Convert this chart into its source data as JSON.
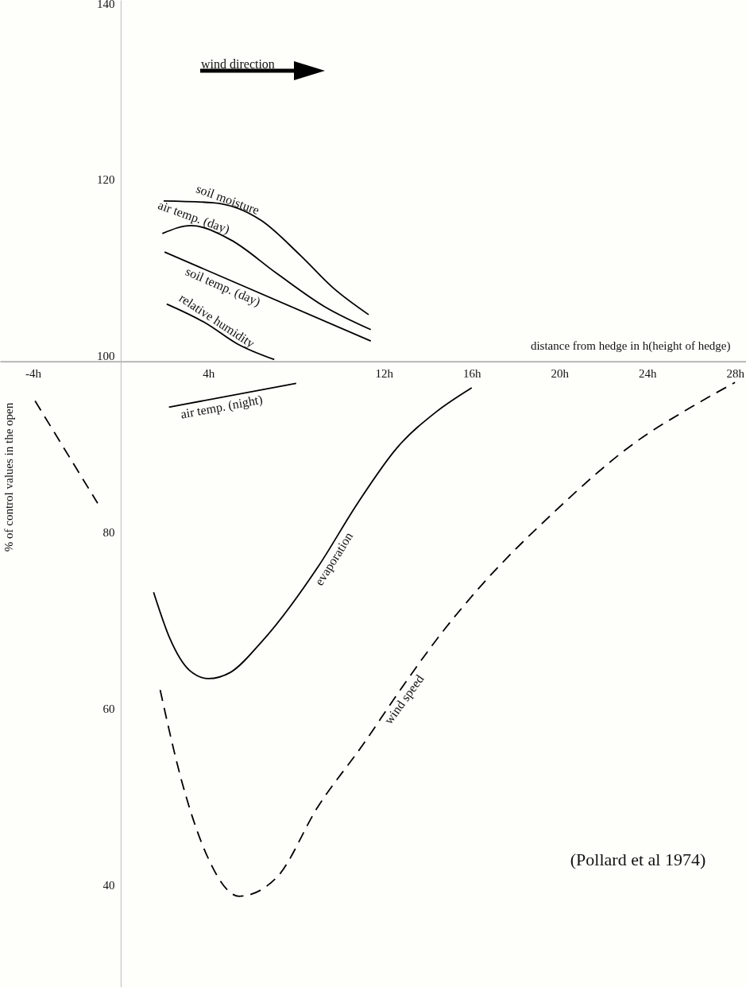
{
  "chart_data": {
    "type": "line",
    "xlabel": "distance from hedge in h(height of hedge)",
    "ylabel": "% of control values in the open",
    "annotations": [
      "wind direction",
      "(Pollard et al 1974)"
    ],
    "xlim": [
      -5.5,
      28.5
    ],
    "ylim": [
      29,
      141
    ],
    "xticks": [
      {
        "value": -4,
        "label": "-4h"
      },
      {
        "value": 4,
        "label": "4h"
      },
      {
        "value": 12,
        "label": "12h"
      },
      {
        "value": 16,
        "label": "16h"
      },
      {
        "value": 20,
        "label": "20h"
      },
      {
        "value": 24,
        "label": "24h"
      },
      {
        "value": 28,
        "label": "28h"
      }
    ],
    "yticks": [
      40,
      60,
      80,
      100,
      120,
      140
    ],
    "grid": false,
    "marker": "none",
    "series": [
      {
        "name": "soil moisture",
        "color": "#000000",
        "line_style": "solid",
        "x": [
          1.96,
          4.2,
          6.4,
          8.2,
          9.7,
          11.3
        ],
        "values": [
          118.2,
          118.0,
          116.0,
          112.0,
          108.3,
          105.3
        ]
      },
      {
        "name": "air temp. (day)",
        "color": "#000000",
        "line_style": "solid",
        "x": [
          1.9,
          3.2,
          5.0,
          7.1,
          9.3,
          11.4
        ],
        "values": [
          114.5,
          115.4,
          113.8,
          110.0,
          106.2,
          103.6
        ]
      },
      {
        "name": "soil temp. (day)",
        "color": "#000000",
        "line_style": "solid",
        "x": [
          2.0,
          11.4
        ],
        "values": [
          112.4,
          102.3
        ]
      },
      {
        "name": "relative humidity",
        "color": "#000000",
        "line_style": "solid",
        "x": [
          2.1,
          3.9,
          5.3,
          7.0
        ],
        "values": [
          106.5,
          104.3,
          102.0,
          100.2
        ]
      },
      {
        "name": "air temp. (night)",
        "color": "#000000",
        "line_style": "solid",
        "x": [
          2.2,
          8.0
        ],
        "values": [
          94.8,
          97.5
        ]
      },
      {
        "name": "evaporation",
        "color": "#000000",
        "line_style": "solid",
        "x": [
          1.5,
          2.25,
          3.15,
          4.0,
          5.0,
          6.4,
          9.0,
          10.8,
          12.6,
          14.4,
          16.0
        ],
        "values": [
          73.8,
          68.5,
          64.9,
          64.0,
          64.7,
          68.1,
          76.7,
          83.9,
          90.2,
          94.3,
          97.0
        ]
      },
      {
        "name": "wind speed",
        "color": "#000000",
        "line_style": "dashed",
        "x": [
          -3.9,
          -1.05,
          0.5,
          1.8,
          2.8,
          3.9,
          5.4,
          7.1,
          9.0,
          11.1,
          12.6,
          14.7,
          16.2,
          19.8,
          23.4,
          26.0,
          28.0
        ],
        "values": [
          95.5,
          83.9,
          null,
          62.7,
          52.2,
          44.1,
          39.3,
          41.4,
          49.5,
          56.7,
          62.2,
          69.4,
          73.9,
          83.0,
          90.7,
          94.8,
          97.6
        ]
      }
    ]
  }
}
